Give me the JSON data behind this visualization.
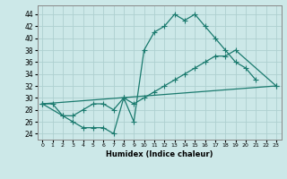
{
  "xlabel": "Humidex (Indice chaleur)",
  "bg_color": "#cce8e8",
  "grid_color": "#aed0d0",
  "line_color": "#1a7a6e",
  "xlim": [
    -0.5,
    23.5
  ],
  "ylim": [
    23.0,
    45.5
  ],
  "yticks": [
    24,
    26,
    28,
    30,
    32,
    34,
    36,
    38,
    40,
    42,
    44
  ],
  "xticks": [
    0,
    1,
    2,
    3,
    4,
    5,
    6,
    7,
    8,
    9,
    10,
    11,
    12,
    13,
    14,
    15,
    16,
    17,
    18,
    19,
    20,
    21,
    22,
    23
  ],
  "line1_x": [
    0,
    1,
    2,
    3,
    4,
    5,
    6,
    7,
    8,
    9,
    10,
    11,
    12,
    13,
    14,
    15,
    16,
    17,
    18,
    19,
    20,
    21
  ],
  "line1_y": [
    29,
    29,
    27,
    26,
    25,
    25,
    25,
    24,
    30,
    26,
    38,
    41,
    42,
    44,
    43,
    44,
    42,
    40,
    38,
    36,
    35,
    33
  ],
  "line2_x": [
    0,
    2,
    3,
    4,
    5,
    6,
    7,
    8,
    9,
    10,
    11,
    12,
    13,
    14,
    15,
    16,
    17,
    18,
    19,
    23
  ],
  "line2_y": [
    29,
    27,
    27,
    28,
    29,
    29,
    28,
    30,
    29,
    30,
    31,
    32,
    33,
    34,
    35,
    36,
    37,
    37,
    38,
    32
  ],
  "line3_x": [
    0,
    23
  ],
  "line3_y": [
    29,
    32
  ]
}
